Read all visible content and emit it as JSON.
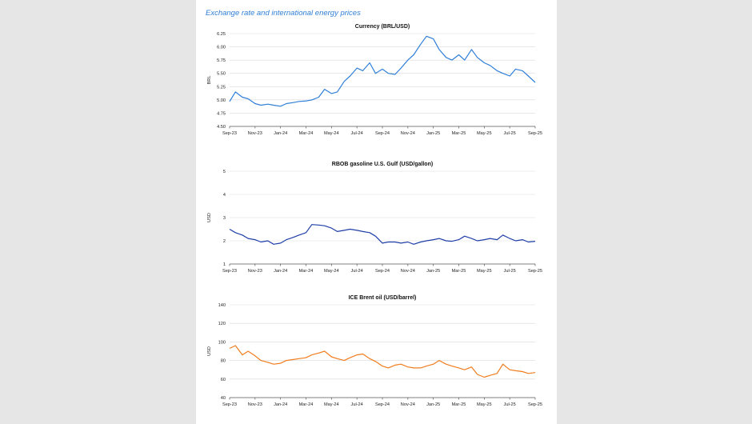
{
  "page_title": "Exchange rate and international energy prices",
  "chart_data": [
    {
      "type": "line",
      "title": "Currency (BRL/USD)",
      "xlabel": "",
      "ylabel": "BRL",
      "ylim": [
        4.5,
        6.25
      ],
      "yticks": [
        "4.50",
        "4.75",
        "5.00",
        "5.25",
        "5.50",
        "5.75",
        "6.00",
        "6.25"
      ],
      "xticks": [
        "Sep-23",
        "Nov-23",
        "Jan-24",
        "Mar-24",
        "May-24",
        "Jul-24",
        "Sep-24",
        "Nov-24",
        "Jan-25",
        "Mar-25",
        "May-25",
        "Jul-25",
        "Sep-25"
      ],
      "color": "#2f7fd8",
      "grid": true,
      "series": [
        {
          "x": [
            "2023-09-01",
            "2023-09-15",
            "2023-10-01",
            "2023-10-15",
            "2023-11-01",
            "2023-11-15",
            "2023-12-01",
            "2023-12-15",
            "2024-01-01",
            "2024-01-15",
            "2024-02-01",
            "2024-02-15",
            "2024-03-01",
            "2024-03-15",
            "2024-04-01",
            "2024-04-15",
            "2024-05-01",
            "2024-05-15",
            "2024-06-01",
            "2024-06-15",
            "2024-07-01",
            "2024-07-15",
            "2024-08-01",
            "2024-08-15",
            "2024-09-01",
            "2024-09-15",
            "2024-10-01",
            "2024-10-15",
            "2024-11-01",
            "2024-11-15",
            "2024-12-01",
            "2024-12-15",
            "2025-01-01",
            "2025-01-15",
            "2025-02-01",
            "2025-02-15",
            "2025-03-01",
            "2025-03-15",
            "2025-04-01",
            "2025-04-15",
            "2025-05-01",
            "2025-05-15",
            "2025-06-01",
            "2025-06-15",
            "2025-07-01",
            "2025-07-15",
            "2025-08-01",
            "2025-08-15",
            "2025-09-01"
          ],
          "y": [
            4.97,
            5.15,
            5.05,
            5.02,
            4.93,
            4.9,
            4.92,
            4.9,
            4.88,
            4.93,
            4.95,
            4.97,
            4.98,
            5.0,
            5.05,
            5.2,
            5.12,
            5.15,
            5.35,
            5.45,
            5.6,
            5.55,
            5.7,
            5.5,
            5.58,
            5.5,
            5.48,
            5.6,
            5.75,
            5.85,
            6.05,
            6.2,
            6.15,
            5.95,
            5.8,
            5.75,
            5.85,
            5.75,
            5.95,
            5.8,
            5.7,
            5.65,
            5.55,
            5.5,
            5.45,
            5.58,
            5.55,
            5.45,
            5.33
          ]
        }
      ]
    },
    {
      "type": "line",
      "title": "RBOB gasoline U.S. Gulf (USD/gallon)",
      "xlabel": "",
      "ylabel": "USD",
      "ylim": [
        1,
        5
      ],
      "yticks": [
        "1",
        "2",
        "3",
        "4",
        "5"
      ],
      "xticks": [
        "Sep-23",
        "Nov-23",
        "Jan-24",
        "Mar-24",
        "May-24",
        "Jul-24",
        "Sep-24",
        "Nov-24",
        "Jan-25",
        "Mar-25",
        "May-25",
        "Jul-25",
        "Sep-25"
      ],
      "color": "#1f3fa8",
      "grid": true,
      "series": [
        {
          "x": [
            "2023-09-01",
            "2023-09-15",
            "2023-10-01",
            "2023-10-15",
            "2023-11-01",
            "2023-11-15",
            "2023-12-01",
            "2023-12-15",
            "2024-01-01",
            "2024-01-15",
            "2024-02-01",
            "2024-02-15",
            "2024-03-01",
            "2024-03-15",
            "2024-04-01",
            "2024-04-15",
            "2024-05-01",
            "2024-05-15",
            "2024-06-01",
            "2024-06-15",
            "2024-07-01",
            "2024-07-15",
            "2024-08-01",
            "2024-08-15",
            "2024-09-01",
            "2024-09-15",
            "2024-10-01",
            "2024-10-15",
            "2024-11-01",
            "2024-11-15",
            "2024-12-01",
            "2024-12-15",
            "2025-01-01",
            "2025-01-15",
            "2025-02-01",
            "2025-02-15",
            "2025-03-01",
            "2025-03-15",
            "2025-04-01",
            "2025-04-15",
            "2025-05-01",
            "2025-05-15",
            "2025-06-01",
            "2025-06-15",
            "2025-07-01",
            "2025-07-15",
            "2025-08-01",
            "2025-08-15",
            "2025-09-01"
          ],
          "y": [
            2.5,
            2.35,
            2.25,
            2.1,
            2.05,
            1.95,
            2.0,
            1.85,
            1.9,
            2.05,
            2.15,
            2.25,
            2.35,
            2.7,
            2.68,
            2.65,
            2.55,
            2.4,
            2.45,
            2.5,
            2.45,
            2.4,
            2.35,
            2.2,
            1.9,
            1.95,
            1.95,
            1.9,
            1.95,
            1.85,
            1.95,
            2.0,
            2.05,
            2.1,
            2.0,
            1.98,
            2.05,
            2.2,
            2.1,
            2.0,
            2.05,
            2.1,
            2.05,
            2.25,
            2.1,
            2.0,
            2.05,
            1.95,
            1.98
          ]
        }
      ]
    },
    {
      "type": "line",
      "title": "ICE Brent oil (USD/barrel)",
      "xlabel": "",
      "ylabel": "USD",
      "ylim": [
        40,
        140
      ],
      "yticks": [
        "40",
        "60",
        "80",
        "100",
        "120",
        "140"
      ],
      "xticks": [
        "Sep-23",
        "Nov-23",
        "Jan-24",
        "Mar-24",
        "May-24",
        "Jul-24",
        "Sep-24",
        "Nov-24",
        "Jan-25",
        "Mar-25",
        "May-25",
        "Jul-25",
        "Sep-25"
      ],
      "color": "#f07d1f",
      "grid": true,
      "series": [
        {
          "x": [
            "2023-09-01",
            "2023-09-15",
            "2023-10-01",
            "2023-10-15",
            "2023-11-01",
            "2023-11-15",
            "2023-12-01",
            "2023-12-15",
            "2024-01-01",
            "2024-01-15",
            "2024-02-01",
            "2024-02-15",
            "2024-03-01",
            "2024-03-15",
            "2024-04-01",
            "2024-04-15",
            "2024-05-01",
            "2024-05-15",
            "2024-06-01",
            "2024-06-15",
            "2024-07-01",
            "2024-07-15",
            "2024-08-01",
            "2024-08-15",
            "2024-09-01",
            "2024-09-15",
            "2024-10-01",
            "2024-10-15",
            "2024-11-01",
            "2024-11-15",
            "2024-12-01",
            "2024-12-15",
            "2025-01-01",
            "2025-01-15",
            "2025-02-01",
            "2025-02-15",
            "2025-03-01",
            "2025-03-15",
            "2025-04-01",
            "2025-04-15",
            "2025-05-01",
            "2025-05-15",
            "2025-06-01",
            "2025-06-15",
            "2025-07-01",
            "2025-07-15",
            "2025-08-01",
            "2025-08-15",
            "2025-09-01"
          ],
          "y": [
            93,
            96,
            86,
            90,
            85,
            80,
            78,
            76,
            77,
            80,
            81,
            82,
            83,
            86,
            88,
            90,
            84,
            82,
            80,
            83,
            86,
            87,
            82,
            79,
            74,
            72,
            75,
            76,
            73,
            72,
            72,
            74,
            76,
            80,
            76,
            74,
            72,
            70,
            73,
            65,
            62,
            64,
            66,
            76,
            70,
            69,
            68,
            66,
            67
          ]
        }
      ]
    }
  ]
}
